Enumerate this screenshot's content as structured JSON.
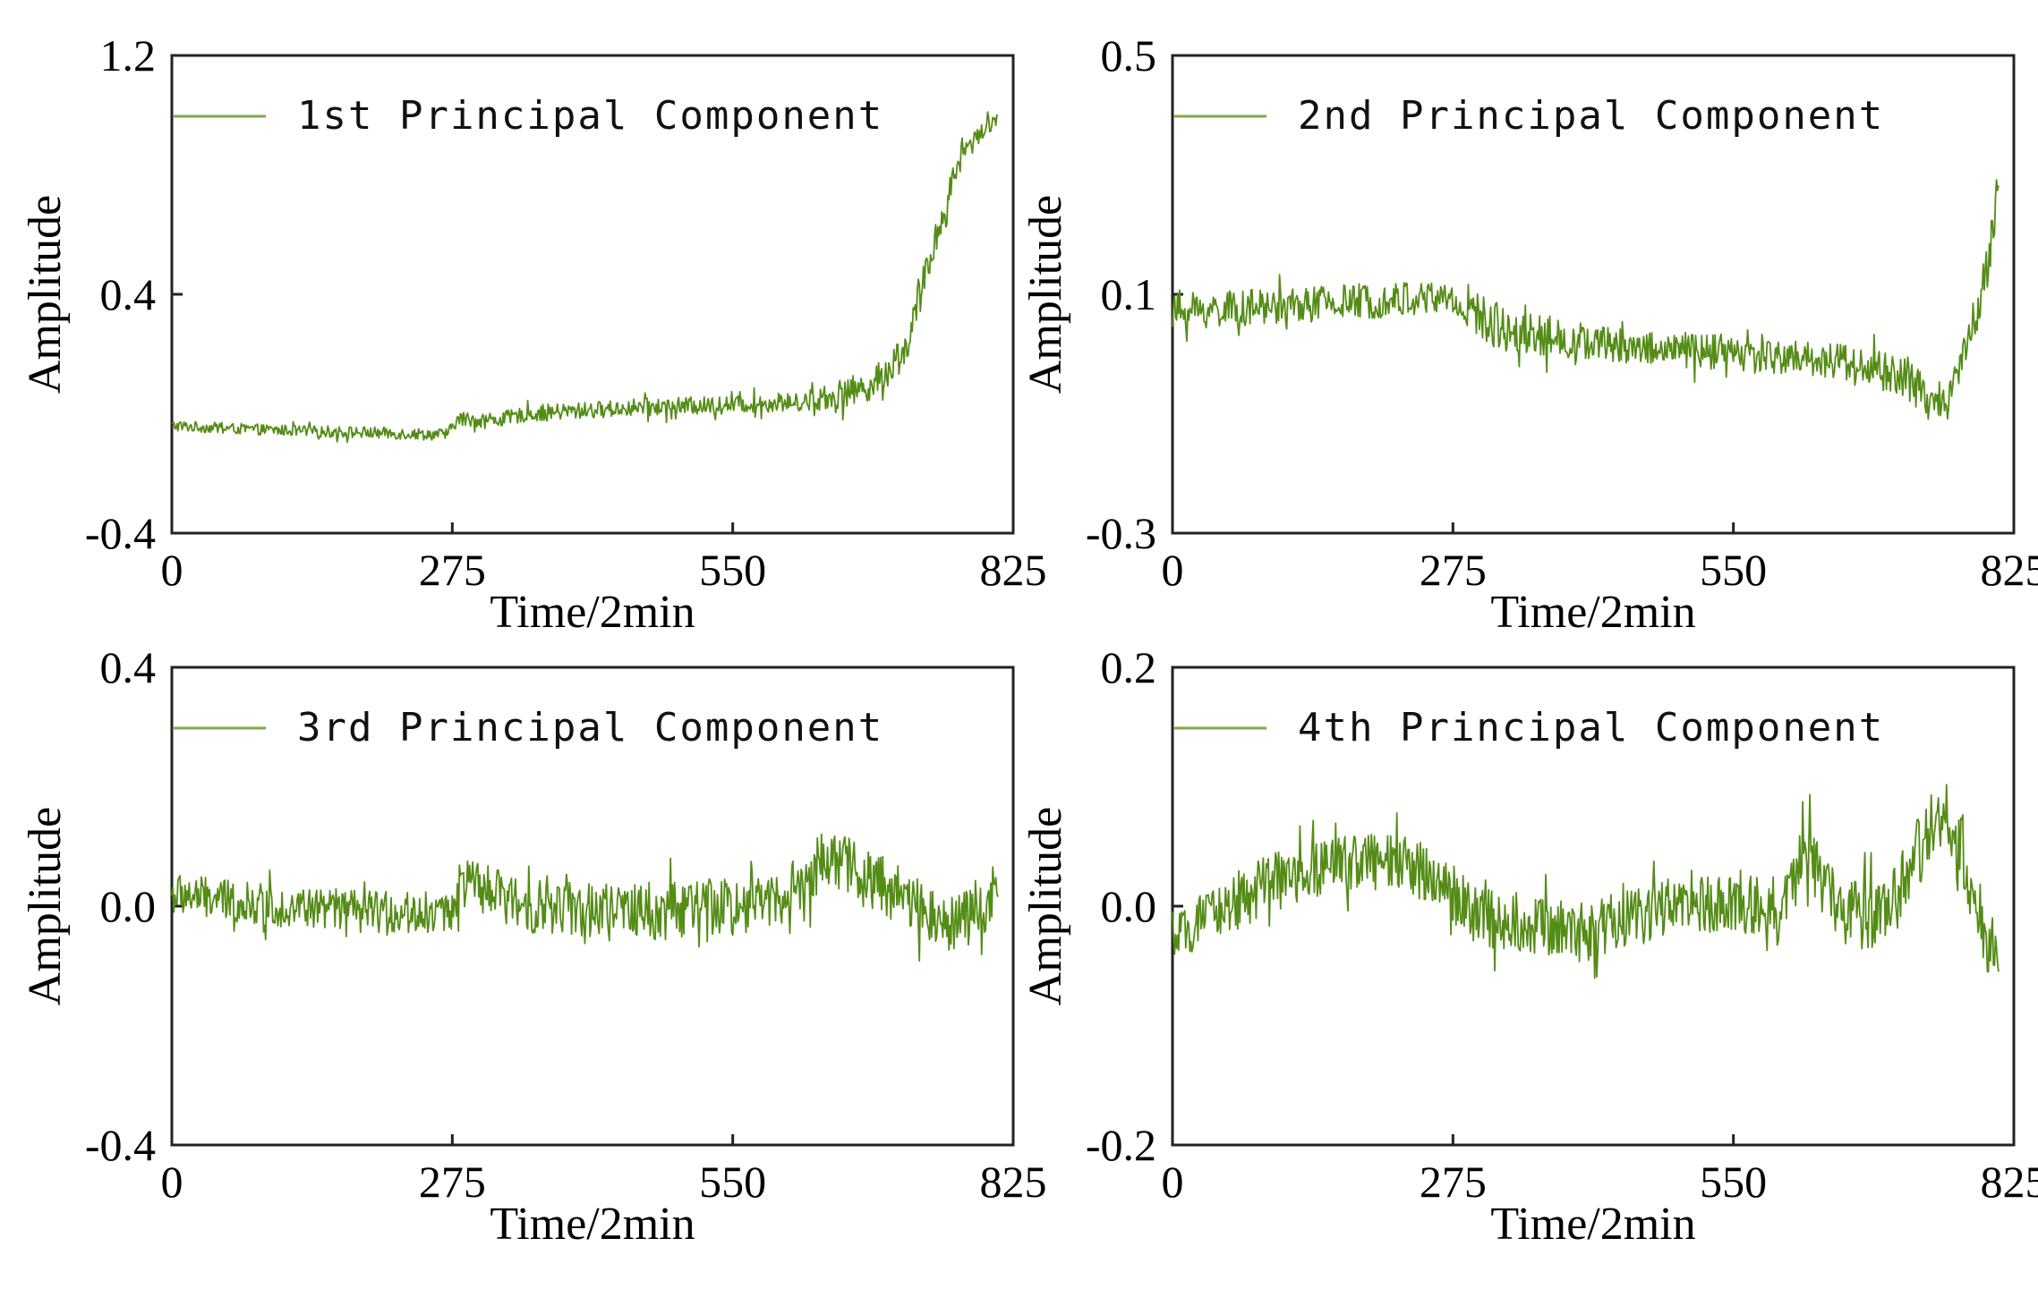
{
  "colors": {
    "series": "#548C16",
    "legend_line": "#7DAA45",
    "axis": "#222222"
  },
  "chart_data": [
    {
      "type": "line",
      "title": "",
      "legend": "1st Principal Component",
      "xlabel": "Time/2min",
      "ylabel": "Amplitude",
      "xlim": [
        0,
        825
      ],
      "ylim": [
        -0.4,
        1.2
      ],
      "xticks": [
        0,
        275,
        550,
        825
      ],
      "xtick_labels": [
        "0",
        "275",
        "550",
        "825"
      ],
      "yticks": [
        -0.4,
        0.4,
        1.2
      ],
      "ytick_labels": [
        "-0.4",
        "0.4",
        "1.2"
      ],
      "x_end": 810,
      "anchors": [
        [
          0,
          -0.04
        ],
        [
          60,
          -0.05
        ],
        [
          150,
          -0.06
        ],
        [
          270,
          -0.07
        ],
        [
          280,
          -0.02
        ],
        [
          320,
          -0.02
        ],
        [
          350,
          0.0
        ],
        [
          450,
          0.02
        ],
        [
          550,
          0.03
        ],
        [
          620,
          0.04
        ],
        [
          650,
          0.06
        ],
        [
          690,
          0.1
        ],
        [
          720,
          0.22
        ],
        [
          750,
          0.6
        ],
        [
          775,
          0.88
        ],
        [
          810,
          1.0
        ]
      ],
      "noise": [
        0.018,
        0.018,
        0.02,
        0.02,
        0.025,
        0.025,
        0.028,
        0.03,
        0.03,
        0.04,
        0.05,
        0.06,
        0.06,
        0.05,
        0.03,
        0.02
      ]
    },
    {
      "type": "line",
      "title": "",
      "legend": "2nd Principal Component",
      "xlabel": "Time/2min",
      "ylabel": "Amplitude",
      "xlim": [
        0,
        825
      ],
      "ylim": [
        -0.3,
        0.5
      ],
      "xticks": [
        0,
        275,
        550,
        825
      ],
      "xtick_labels": [
        "0",
        "275",
        "550",
        "825"
      ],
      "yticks": [
        -0.3,
        0.1,
        0.5
      ],
      "ytick_labels": [
        "-0.3",
        "0.1",
        "0.5"
      ],
      "x_end": 810,
      "anchors": [
        [
          0,
          0.07
        ],
        [
          100,
          0.08
        ],
        [
          200,
          0.09
        ],
        [
          270,
          0.095
        ],
        [
          290,
          0.07
        ],
        [
          330,
          0.04
        ],
        [
          400,
          0.02
        ],
        [
          550,
          0.0
        ],
        [
          650,
          -0.01
        ],
        [
          720,
          -0.04
        ],
        [
          740,
          -0.08
        ],
        [
          760,
          -0.07
        ],
        [
          780,
          0.02
        ],
        [
          800,
          0.15
        ],
        [
          810,
          0.28
        ]
      ],
      "noise": [
        0.03,
        0.03,
        0.03,
        0.03,
        0.04,
        0.035,
        0.03,
        0.03,
        0.035,
        0.04,
        0.03,
        0.03,
        0.04,
        0.04,
        0.03
      ]
    },
    {
      "type": "line",
      "title": "",
      "legend": "3rd Principal Component",
      "xlabel": "Time/2min",
      "ylabel": "Amplitude",
      "xlim": [
        0,
        825
      ],
      "ylim": [
        -0.4,
        0.4
      ],
      "xticks": [
        0,
        275,
        550,
        825
      ],
      "xtick_labels": [
        "0",
        "275",
        "550",
        "825"
      ],
      "yticks": [
        -0.4,
        0.0,
        0.4
      ],
      "ytick_labels": [
        "-0.4",
        "0.0",
        "0.4"
      ],
      "x_end": 810,
      "anchors": [
        [
          0,
          0.02
        ],
        [
          100,
          0.0
        ],
        [
          200,
          -0.01
        ],
        [
          270,
          -0.01
        ],
        [
          285,
          0.04
        ],
        [
          350,
          0.0
        ],
        [
          450,
          -0.01
        ],
        [
          550,
          0.0
        ],
        [
          620,
          0.03
        ],
        [
          640,
          0.09
        ],
        [
          680,
          0.05
        ],
        [
          730,
          0.0
        ],
        [
          770,
          -0.03
        ],
        [
          800,
          0.0
        ],
        [
          810,
          0.01
        ]
      ],
      "noise": [
        0.035,
        0.035,
        0.035,
        0.04,
        0.045,
        0.045,
        0.05,
        0.05,
        0.05,
        0.05,
        0.05,
        0.05,
        0.05,
        0.05,
        0.05
      ]
    },
    {
      "type": "line",
      "title": "",
      "legend": "4th Principal Component",
      "xlabel": "Time/2min",
      "ylabel": "Amplitude",
      "xlim": [
        0,
        825
      ],
      "ylim": [
        -0.2,
        0.2
      ],
      "xticks": [
        0,
        275,
        550,
        825
      ],
      "xtick_labels": [
        "0",
        "275",
        "550",
        "825"
      ],
      "yticks": [
        -0.2,
        0.0,
        0.2
      ],
      "ytick_labels": [
        "-0.2",
        "0.0",
        "0.2"
      ],
      "x_end": 810,
      "anchors": [
        [
          0,
          -0.03
        ],
        [
          50,
          0.0
        ],
        [
          100,
          0.02
        ],
        [
          180,
          0.04
        ],
        [
          250,
          0.03
        ],
        [
          300,
          -0.01
        ],
        [
          400,
          -0.02
        ],
        [
          500,
          0.0
        ],
        [
          600,
          0.0
        ],
        [
          620,
          0.05
        ],
        [
          650,
          0.0
        ],
        [
          700,
          -0.01
        ],
        [
          740,
          0.06
        ],
        [
          760,
          0.08
        ],
        [
          790,
          0.0
        ],
        [
          810,
          -0.06
        ]
      ],
      "noise": [
        0.02,
        0.025,
        0.025,
        0.025,
        0.025,
        0.025,
        0.025,
        0.025,
        0.025,
        0.03,
        0.03,
        0.03,
        0.03,
        0.03,
        0.03,
        0.02
      ]
    }
  ]
}
